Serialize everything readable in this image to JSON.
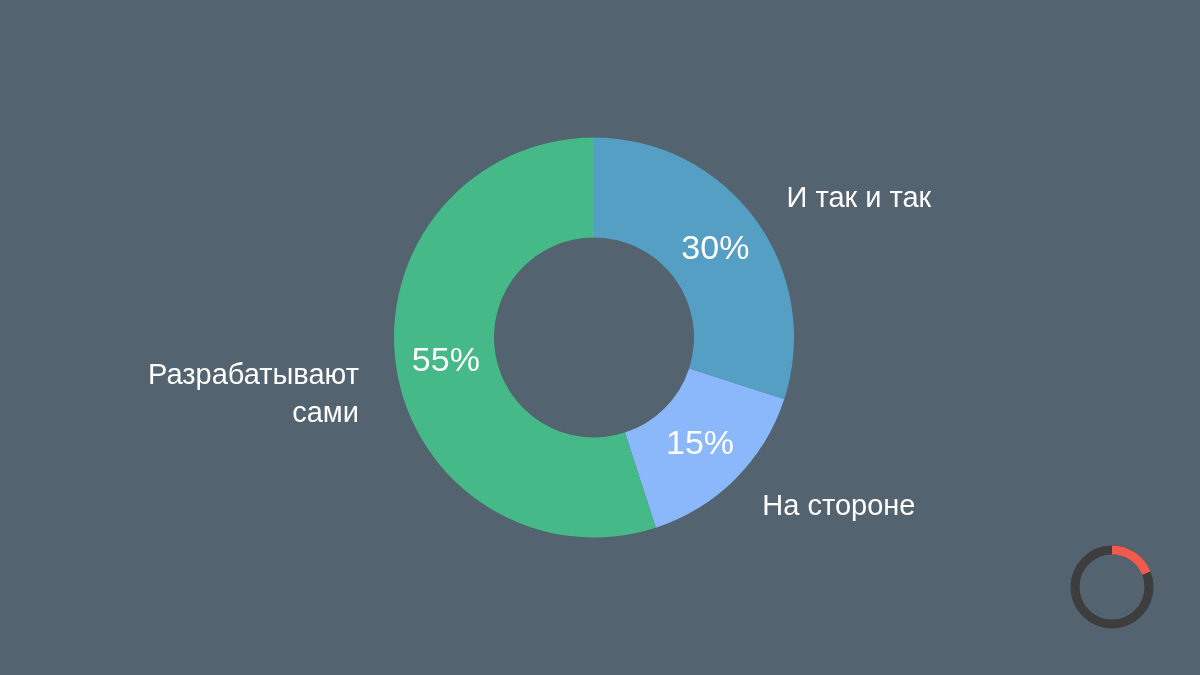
{
  "chart_data": {
    "type": "donut",
    "categories": [
      "И так и так",
      "На стороне",
      "Разрабатывают сами"
    ],
    "values": [
      30,
      15,
      55
    ],
    "colors": [
      "#569fc4",
      "#8ab8fb",
      "#45b987"
    ],
    "value_labels": [
      "30%",
      "15%",
      "55%"
    ]
  }
}
